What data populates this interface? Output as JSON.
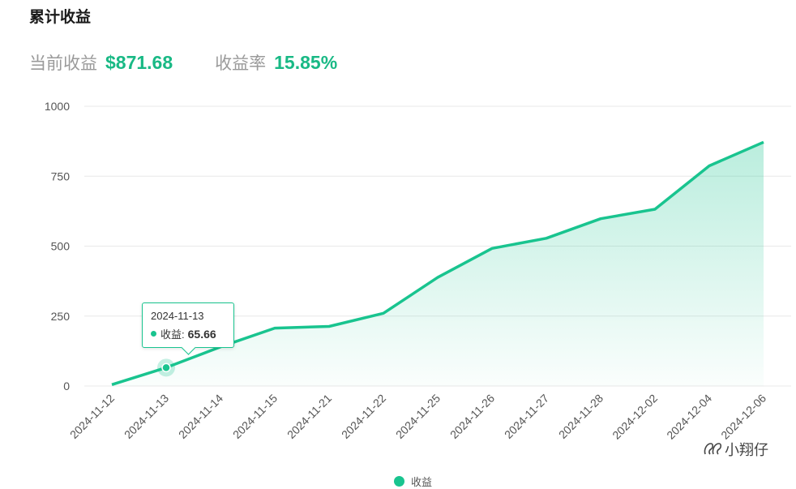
{
  "title": "累计收益",
  "summary": {
    "profit_label": "当前收益",
    "profit_value": "$871.68",
    "rate_label": "收益率",
    "rate_value": "15.85%"
  },
  "tooltip": {
    "date": "2024-11-13",
    "series_label": "收益:",
    "value": "65.66"
  },
  "legend": {
    "label": "收益"
  },
  "watermark": {
    "text": "小翔仔"
  },
  "colors": {
    "accent": "#19c48f",
    "value_text": "#19b985",
    "grid": "#e8e8e8"
  },
  "chart_data": {
    "type": "area",
    "categories": [
      "2024-11-12",
      "2024-11-13",
      "2024-11-14",
      "2024-11-15",
      "2024-11-21",
      "2024-11-22",
      "2024-11-25",
      "2024-11-26",
      "2024-11-27",
      "2024-11-28",
      "2024-12-02",
      "2024-12-04",
      "2024-12-06"
    ],
    "series": [
      {
        "name": "收益",
        "values": [
          5,
          65.66,
          140,
          207,
          213,
          260,
          388,
          492,
          528,
          598,
          632,
          787,
          871.68
        ]
      }
    ],
    "yticks": [
      0,
      250,
      500,
      750,
      1000
    ],
    "ylim": [
      0,
      1000
    ],
    "grid": true,
    "legend_position": "bottom"
  }
}
